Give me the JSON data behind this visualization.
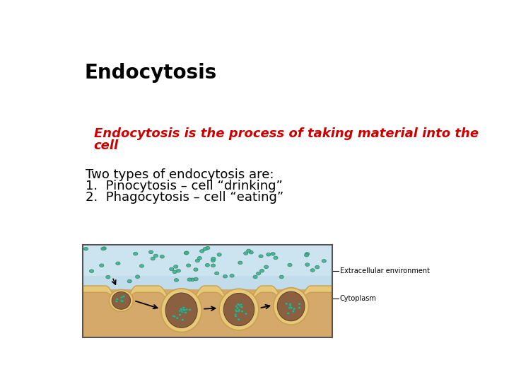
{
  "title": "Endocytosis",
  "title_fontsize": 20,
  "title_color": "#000000",
  "subtitle_line1": "Endocytosis is the process of taking material into the",
  "subtitle_line2": "cell",
  "subtitle_period": ".",
  "subtitle_color": "#cc0000",
  "subtitle_fontsize": 13,
  "body_lines": [
    "Two types of endocytosis are:",
    "1.  Pinocytosis – cell “drinking”",
    "2.  Phagocytosis – cell “eating”"
  ],
  "body_fontsize": 13,
  "body_color": "#000000",
  "background_color": "#ffffff",
  "diagram_label1": "Extracellular environment",
  "diagram_label2": "Cytoplasm",
  "diagram_label_fontsize": 7,
  "ec_color": "#c8dfe8",
  "ec_color_top": "#daeaf2",
  "cyto_color": "#d4a96a",
  "membrane_color": "#e8c97a",
  "membrane_edge_color": "#c8a050",
  "vesicle_outer_color": "#e8c97a",
  "vesicle_inner_color": "#8b6040",
  "dot_color": "#40b090",
  "dot_edge_color": "#2a8060"
}
